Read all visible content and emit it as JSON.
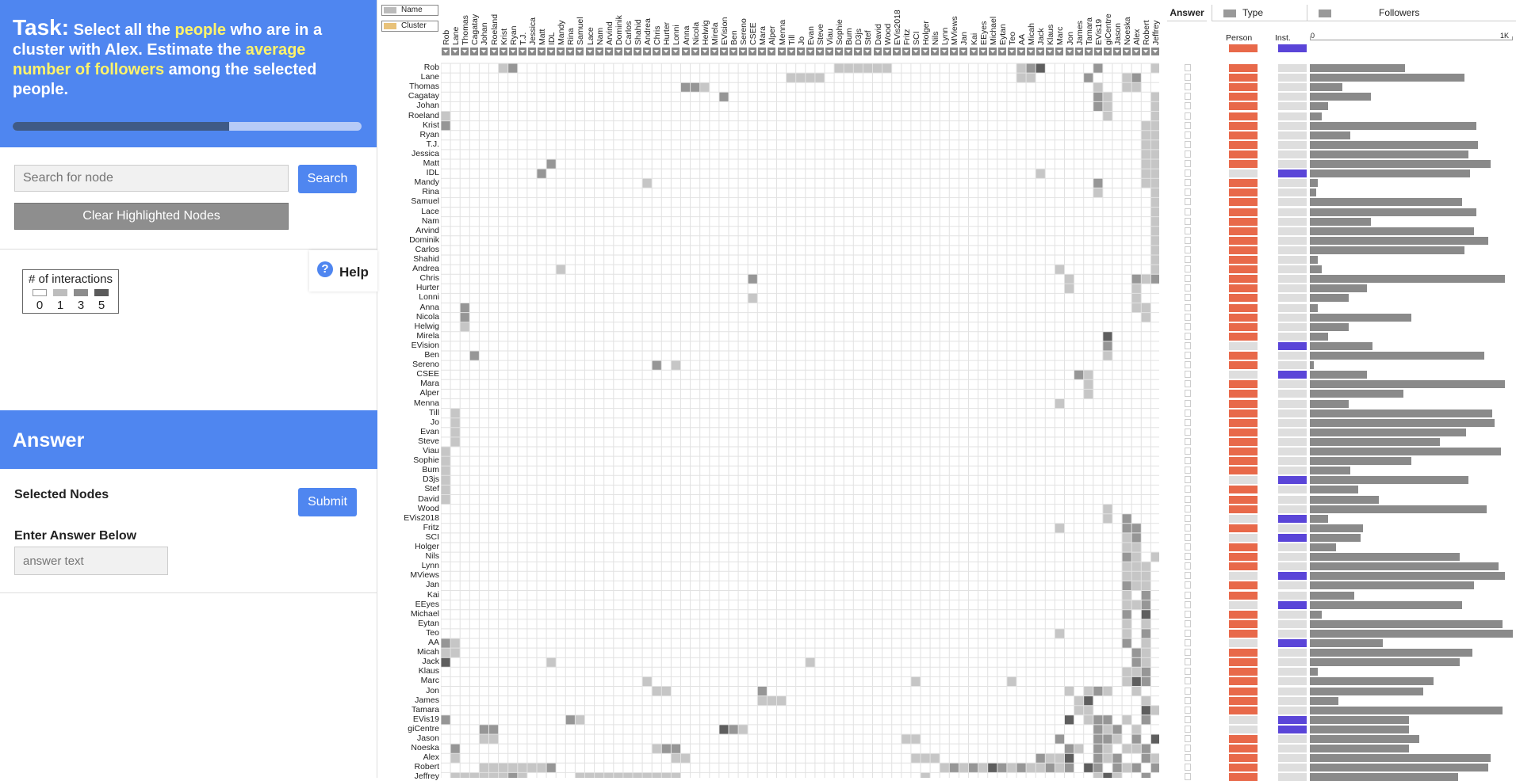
{
  "task": {
    "label": "Task:",
    "text_parts": [
      "Select all the ",
      "people",
      " who are in a cluster with Alex. Estimate the ",
      "average number of followers",
      " among the selected people."
    ],
    "progress": 0.62
  },
  "search": {
    "placeholder": "Search for node",
    "button": "Search",
    "clear_button": "Clear Highlighted Nodes"
  },
  "legend": {
    "title": "# of interactions",
    "values": [
      "0",
      "1",
      "3",
      "5"
    ],
    "colors": [
      "#ffffff",
      "#bdbdbd",
      "#8c8c8c",
      "#5a5a5a"
    ]
  },
  "help": {
    "label": "Help",
    "icon": "?"
  },
  "answer": {
    "header": "Answer",
    "selected_label": "Selected Nodes",
    "submit": "Submit",
    "enter_label": "Enter Answer Below",
    "placeholder": "answer text"
  },
  "matrix": {
    "sort_name": "Name",
    "sort_cluster": "Cluster",
    "nodes": [
      "Rob",
      "Lane",
      "Thomas",
      "Cagatay",
      "Johan",
      "Roeland",
      "Krist",
      "Ryan",
      "T.J.",
      "Jessica",
      "Matt",
      "IDL",
      "Mandy",
      "Rina",
      "Samuel",
      "Lace",
      "Nam",
      "Arvind",
      "Dominik",
      "Carlos",
      "Shahid",
      "Andrea",
      "Chris",
      "Hurter",
      "Lonni",
      "Anna",
      "Nicola",
      "Helwig",
      "Mirela",
      "EVision",
      "Ben",
      "Sereno",
      "CSEE",
      "Mara",
      "Alper",
      "Menna",
      "Till",
      "Jo",
      "Evan",
      "Steve",
      "Viau",
      "Sophie",
      "Bum",
      "D3js",
      "Stef",
      "David",
      "Wood",
      "EVis2018",
      "Fritz",
      "SCI",
      "Holger",
      "Nils",
      "Lynn",
      "MViews",
      "Jan",
      "Kai",
      "EEyes",
      "Michael",
      "Eytan",
      "Teo",
      "AA",
      "Micah",
      "Jack",
      "Klaus",
      "Marc",
      "Jon",
      "James",
      "Tamara",
      "EVis19",
      "giCentre",
      "Jason",
      "Noeska",
      "Alex",
      "Robert",
      "Jeffrey"
    ]
  },
  "attributes": {
    "answer_header": "Answer",
    "type_header": "Type",
    "followers_header": "Followers",
    "type_person": "Person",
    "type_inst": "Inst.",
    "axis_start": "0",
    "axis_end": "1K",
    "person_color": "#e8694a",
    "inst_color": "#5a45d8",
    "bar_color": "#8a8a8a",
    "is_inst": [
      0,
      0,
      0,
      0,
      0,
      0,
      0,
      0,
      0,
      0,
      0,
      1,
      0,
      0,
      0,
      0,
      0,
      0,
      0,
      0,
      0,
      0,
      0,
      0,
      0,
      0,
      0,
      0,
      0,
      1,
      0,
      0,
      1,
      0,
      0,
      0,
      0,
      0,
      0,
      0,
      0,
      0,
      0,
      1,
      0,
      0,
      0,
      1,
      0,
      1,
      0,
      0,
      0,
      1,
      0,
      0,
      1,
      0,
      0,
      0,
      1,
      0,
      0,
      0,
      0,
      0,
      0,
      0,
      1,
      1,
      0,
      0,
      0,
      0,
      0
    ],
    "followers": [
      470,
      760,
      160,
      300,
      90,
      60,
      820,
      200,
      830,
      780,
      890,
      790,
      40,
      30,
      750,
      820,
      300,
      810,
      880,
      760,
      40,
      60,
      960,
      280,
      190,
      40,
      500,
      190,
      90,
      310,
      860,
      20,
      280,
      960,
      460,
      190,
      900,
      910,
      770,
      640,
      940,
      500,
      200,
      780,
      240,
      340,
      870,
      90,
      260,
      250,
      130,
      740,
      930,
      960,
      810,
      220,
      750,
      60,
      950,
      1000,
      360,
      800,
      740,
      40,
      610,
      560,
      140,
      950,
      490,
      490,
      540,
      490,
      890,
      880,
      730
    ]
  }
}
